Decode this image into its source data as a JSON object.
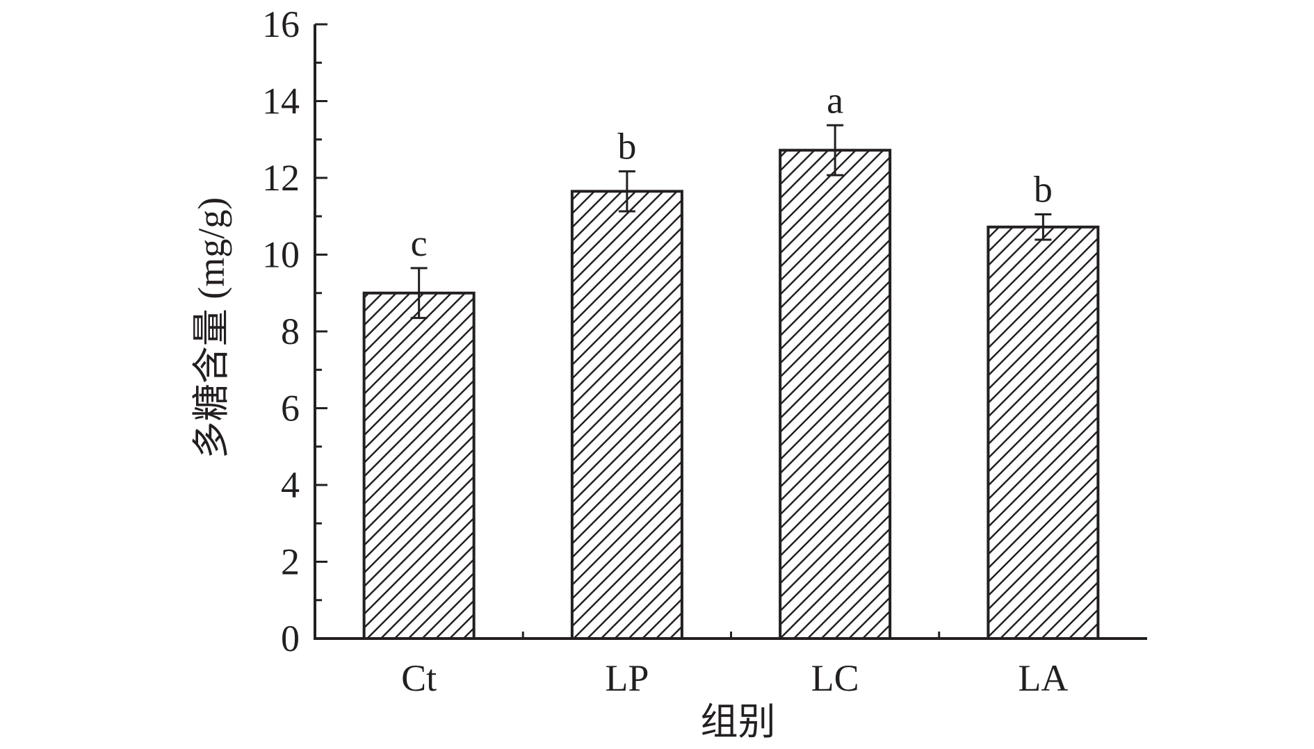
{
  "chart_data": {
    "type": "bar",
    "categories": [
      "Ct",
      "LP",
      "LC",
      "LA"
    ],
    "values": [
      9.0,
      11.65,
      12.72,
      10.72
    ],
    "errors": [
      0.65,
      0.52,
      0.65,
      0.33
    ],
    "significance": [
      "c",
      "b",
      "a",
      "b"
    ],
    "xlabel": "组别",
    "ylabel": "多糖含量 (mg/g)",
    "ylim": [
      0,
      16
    ],
    "yticks": [
      0,
      2,
      4,
      6,
      8,
      10,
      12,
      14,
      16
    ],
    "ytick_labels": [
      "0",
      "2",
      "4",
      "6",
      "8",
      "10",
      "12",
      "14",
      "16"
    ],
    "grid": false,
    "bar_fill": "diagonal-hatch",
    "colors": {
      "axis": "#231f20",
      "bar_edge": "#231f20",
      "hatch": "#231f20",
      "background": "#ffffff"
    }
  }
}
